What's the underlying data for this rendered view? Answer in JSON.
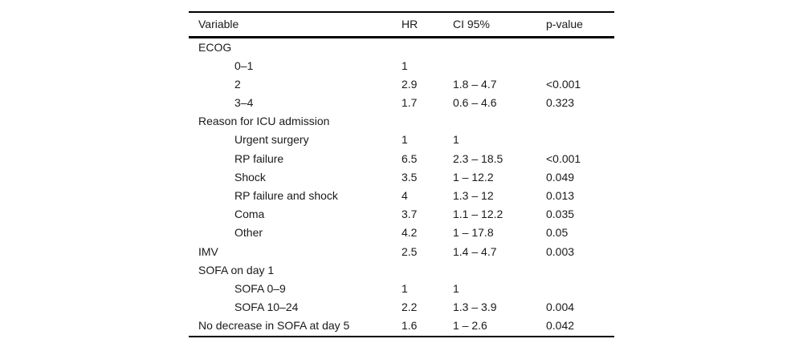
{
  "table": {
    "columns": [
      "Variable",
      "HR",
      "CI 95%",
      "p-value"
    ],
    "rows": [
      {
        "label": "ECOG",
        "indent": false,
        "hr": "",
        "ci": "",
        "p": ""
      },
      {
        "label": "0–1",
        "indent": true,
        "hr": "1",
        "ci": "",
        "p": ""
      },
      {
        "label": "2",
        "indent": true,
        "hr": "2.9",
        "ci": "1.8 – 4.7",
        "p": "<0.001"
      },
      {
        "label": "3–4",
        "indent": true,
        "hr": "1.7",
        "ci": "0.6 – 4.6",
        "p": "0.323"
      },
      {
        "label": "Reason for ICU admission",
        "indent": false,
        "hr": "",
        "ci": "",
        "p": ""
      },
      {
        "label": "Urgent surgery",
        "indent": true,
        "hr": "1",
        "ci": "1",
        "p": ""
      },
      {
        "label": "RP failure",
        "indent": true,
        "hr": "6.5",
        "ci": "2.3 – 18.5",
        "p": "<0.001"
      },
      {
        "label": "Shock",
        "indent": true,
        "hr": "3.5",
        "ci": "1 – 12.2",
        "p": "0.049"
      },
      {
        "label": "RP failure and shock",
        "indent": true,
        "hr": "4",
        "ci": "1.3 – 12",
        "p": "0.013"
      },
      {
        "label": "Coma",
        "indent": true,
        "hr": "3.7",
        "ci": "1.1 – 12.2",
        "p": "0.035"
      },
      {
        "label": "Other",
        "indent": true,
        "hr": "4.2",
        "ci": "1 – 17.8",
        "p": "0.05"
      },
      {
        "label": "IMV",
        "indent": false,
        "hr": "2.5",
        "ci": "1.4 – 4.7",
        "p": "0.003"
      },
      {
        "label": "SOFA on day 1",
        "indent": false,
        "hr": "",
        "ci": "",
        "p": ""
      },
      {
        "label": "SOFA 0–9",
        "indent": true,
        "hr": "1",
        "ci": "1",
        "p": ""
      },
      {
        "label": "SOFA 10–24",
        "indent": true,
        "hr": "2.2",
        "ci": "1.3 – 3.9",
        "p": "0.004"
      },
      {
        "label": "No decrease in SOFA at day 5",
        "indent": false,
        "hr": "1.6",
        "ci": "1 – 2.6",
        "p": "0.042"
      }
    ]
  }
}
